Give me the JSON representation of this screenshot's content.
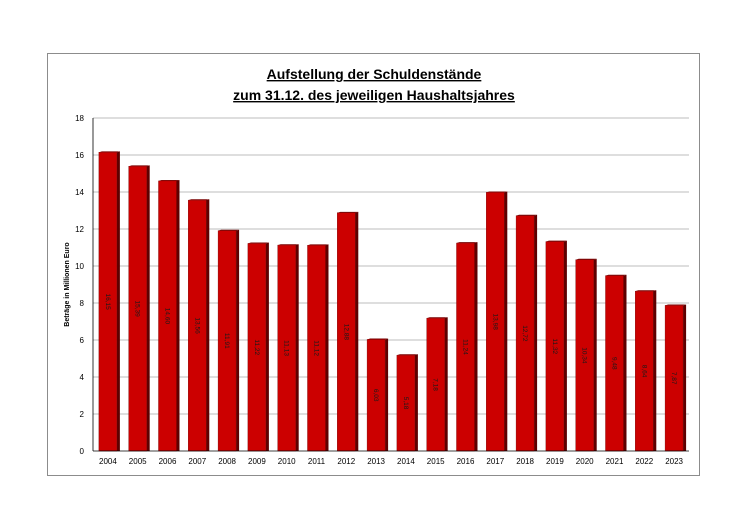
{
  "chart_data": {
    "type": "bar",
    "title_lines": [
      "Aufstellung der Schuldenstände",
      "zum 31.12. des jeweiligen Haushaltsjahres"
    ],
    "xlabel": "",
    "ylabel": "Beträge in Millionen Euro",
    "ylim": [
      0,
      18
    ],
    "yticks": [
      0,
      2,
      4,
      6,
      8,
      10,
      12,
      14,
      16,
      18
    ],
    "grid": true,
    "legend": "none",
    "categories": [
      "2004",
      "2005",
      "2006",
      "2007",
      "2008",
      "2009",
      "2010",
      "2011",
      "2012",
      "2013",
      "2014",
      "2015",
      "2016",
      "2017",
      "2018",
      "2019",
      "2020",
      "2021",
      "2022",
      "2023"
    ],
    "values": [
      16.15,
      15.39,
      14.6,
      13.56,
      11.91,
      11.22,
      11.13,
      11.12,
      12.88,
      6.03,
      5.18,
      7.18,
      11.24,
      13.98,
      12.72,
      11.32,
      10.34,
      9.48,
      8.64,
      7.87
    ],
    "value_labels": [
      "16,15",
      "15,39",
      "14,60",
      "13,56",
      "11,91",
      "11,22",
      "11,13",
      "11,12",
      "12,88",
      "6,03",
      "5,18",
      "7,18",
      "11,24",
      "13,98",
      "12,72",
      "11,32",
      "10,34",
      "9,48",
      "8,64",
      "7,87"
    ],
    "colors": {
      "bar_front": "#cc0000",
      "bar_side": "#5e0000",
      "bar_top": "#7a0000",
      "grid": "#a6a6a6"
    }
  }
}
